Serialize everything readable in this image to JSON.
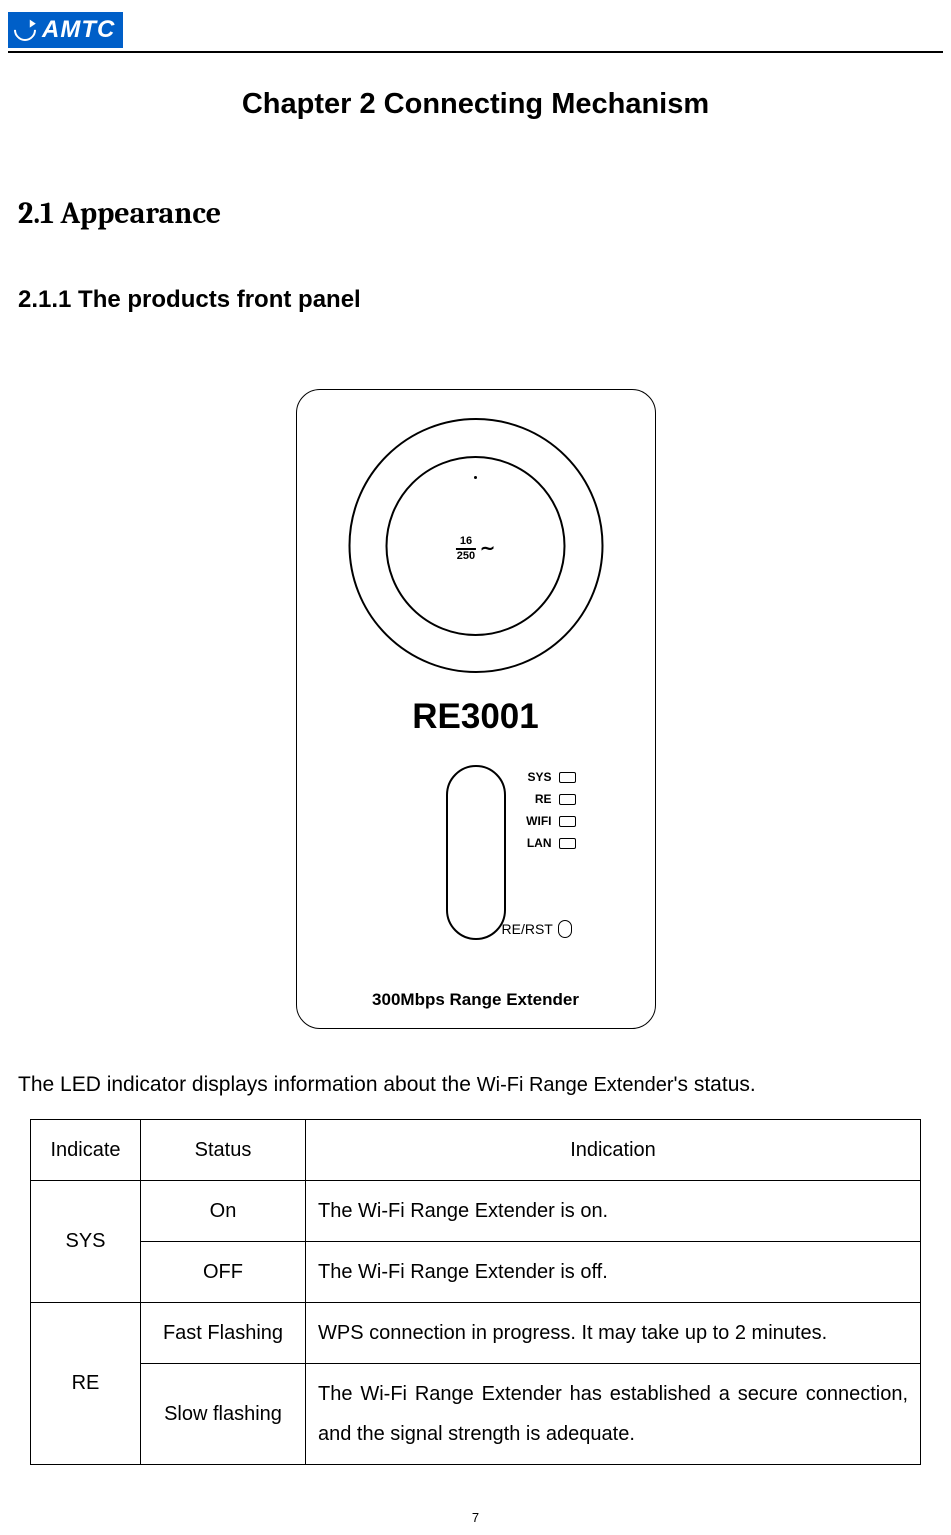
{
  "header": {
    "brand": "AMTC",
    "brand_color": "#005fc8"
  },
  "headings": {
    "chapter": "Chapter 2 Connecting Mechanism",
    "section": "2.1 Appearance",
    "subsection": "2.1.1 The products front panel"
  },
  "device": {
    "model": "RE3001",
    "spec_top": "16",
    "spec_bottom": "250",
    "leds": [
      "SYS",
      "RE",
      "WIFI",
      "LAN"
    ],
    "button_label": "RE/RST",
    "tagline": "300Mbps Range Extender"
  },
  "led_intro_prefix": "The LED indicator displays information about the ",
  "led_intro_mid": "Wi-Fi Range Extender",
  "led_intro_suffix": "'s status.",
  "table": {
    "headers": [
      "Indicate",
      "Status",
      "Indication"
    ],
    "rows": [
      {
        "indicate": "SYS",
        "entries": [
          {
            "status": "On",
            "indication": "The Wi-Fi Range Extender is on."
          },
          {
            "status": "OFF",
            "indication": "The Wi-Fi Range Extender is off."
          }
        ]
      },
      {
        "indicate": "RE",
        "entries": [
          {
            "status": "Fast Flashing",
            "indication": "WPS connection in progress. It may take up to 2 minutes."
          },
          {
            "status": "Slow flashing",
            "indication": "The Wi-Fi Range Extender has established a secure connection, and the signal strength is adequate."
          }
        ]
      }
    ]
  },
  "page_number": "7"
}
